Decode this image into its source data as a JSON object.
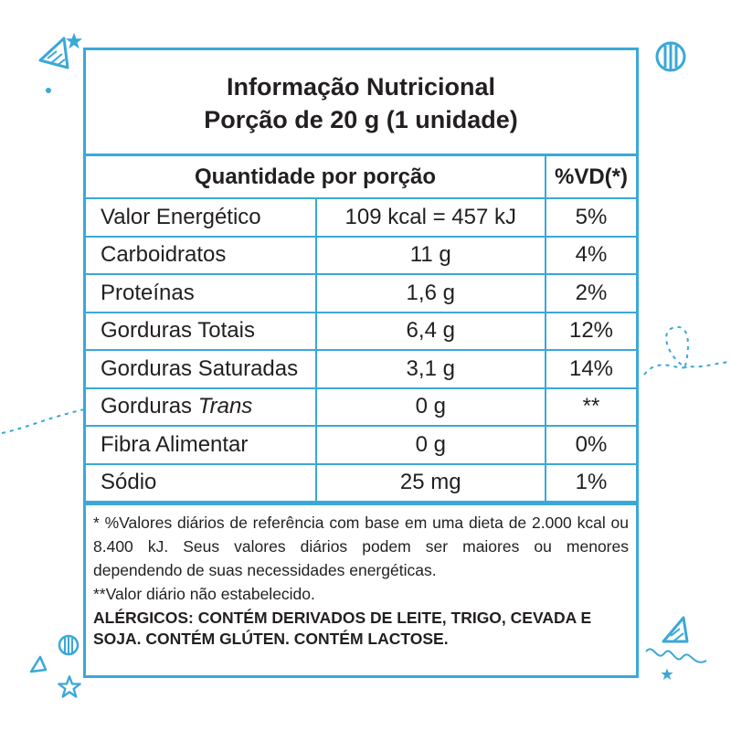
{
  "header": {
    "title": "Informação Nutricional",
    "portion": "Porção de 20 g (1 unidade)"
  },
  "table": {
    "col_quantity": "Quantidade por porção",
    "col_vd": "%VD(*)",
    "rows": [
      {
        "name": "Valor Energético",
        "amount": "109 kcal = 457 kJ",
        "vd": "5%"
      },
      {
        "name": "Carboidratos",
        "amount": "11 g",
        "vd": "4%"
      },
      {
        "name": "Proteínas",
        "amount": "1,6 g",
        "vd": "2%"
      },
      {
        "name": "Gorduras Totais",
        "amount": "6,4 g",
        "vd": "12%"
      },
      {
        "name": "Gorduras Saturadas",
        "amount": "3,1 g",
        "vd": "14%"
      },
      {
        "name": "Gorduras",
        "name_italic": "Trans",
        "amount": "0 g",
        "vd": "**"
      },
      {
        "name": "Fibra Alimentar",
        "amount": "0 g",
        "vd": "0%"
      },
      {
        "name": "Sódio",
        "amount": "25 mg",
        "vd": "1%"
      }
    ]
  },
  "footnotes": {
    "reference": "* %Valores diários de referência com base em uma dieta de 2.000 kcal ou 8.400 kJ. Seus valores diários podem ser maiores ou menores dependendo de suas necessidades energéticas.",
    "not_established": "**Valor diário não estabelecido.",
    "allergens": "ALÉRGICOS: CONTÉM DERIVADOS DE LEITE, TRIGO, CEVADA E SOJA. CONTÉM GLÚTEN. CONTÉM LACTOSE."
  },
  "colors": {
    "border": "#3aa8d8",
    "decoration": "#3aa8d8",
    "text": "#231f20"
  }
}
